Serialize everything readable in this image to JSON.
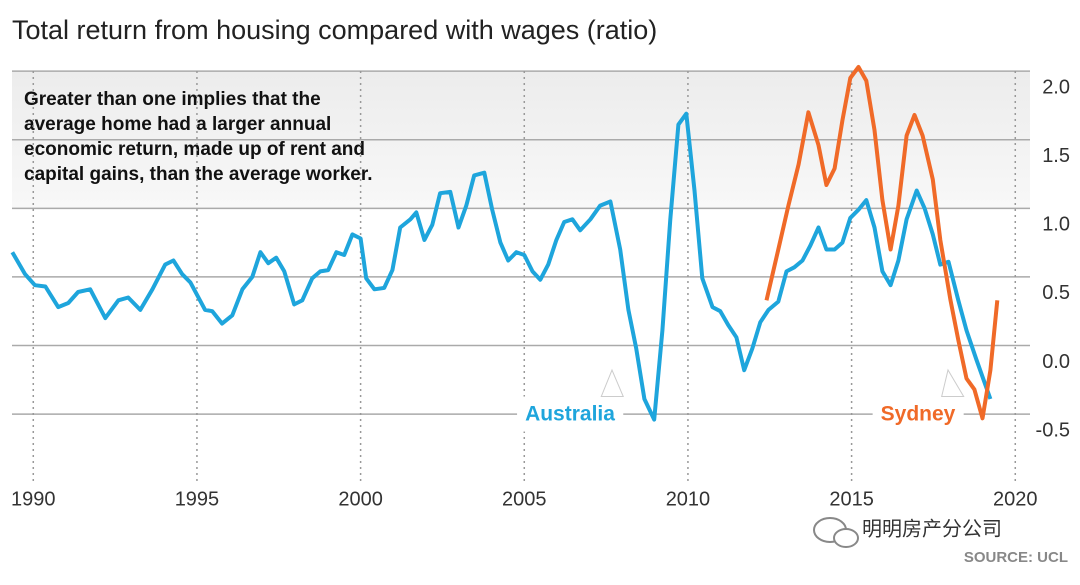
{
  "chart_data": {
    "type": "line",
    "title": "Total return from housing compared with wages (ratio)",
    "annotation": [
      "Greater than one implies that the",
      "average home had a larger annual",
      "economic return, made up of rent and",
      "capital gains, than the average worker."
    ],
    "source": "SOURCE: UCL",
    "watermark": "明明房产分公司",
    "xlim": [
      1989.35,
      2020.45
    ],
    "xticks": [
      1990,
      1995,
      2000,
      2005,
      2010,
      2015,
      2020
    ],
    "ylim": [
      -0.98,
      2.03
    ],
    "yticks": [
      {
        "value": 2,
        "label": "2.0"
      },
      1.5,
      {
        "value": 1,
        "label": "1.0"
      },
      0.5,
      {
        "value": 0,
        "label": "0.0"
      },
      -0.5
    ],
    "grid": true,
    "series": [
      {
        "name": "Australia",
        "color": "#1ea5dc",
        "x": [
          1989.36,
          1989.75,
          1990.05,
          1990.37,
          1990.76,
          1991.07,
          1991.37,
          1991.74,
          1992.2,
          1992.6,
          1992.9,
          1993.27,
          1993.64,
          1994.03,
          1994.28,
          1994.55,
          1994.8,
          1995.25,
          1995.47,
          1995.77,
          1996.08,
          1996.39,
          1996.69,
          1996.94,
          1997.18,
          1997.42,
          1997.67,
          1997.97,
          1998.22,
          1998.52,
          1998.77,
          1999.01,
          1999.26,
          1999.5,
          1999.75,
          2000.0,
          2000.17,
          2000.42,
          2000.72,
          2000.97,
          2001.21,
          2001.52,
          2001.7,
          2001.95,
          2002.19,
          2002.43,
          2002.74,
          2002.99,
          2003.23,
          2003.47,
          2003.78,
          2004.02,
          2004.27,
          2004.51,
          2004.76,
          2005.0,
          2005.25,
          2005.49,
          2005.73,
          2005.98,
          2006.22,
          2006.47,
          2006.71,
          2007.02,
          2007.32,
          2007.63,
          2007.93,
          2008.18,
          2008.42,
          2008.67,
          2008.97,
          2009.22,
          2009.46,
          2009.71,
          2009.95,
          2010.2,
          2010.44,
          2010.75,
          2010.99,
          2011.23,
          2011.48,
          2011.72,
          2011.97,
          2012.21,
          2012.46,
          2012.76,
          2013.01,
          2013.25,
          2013.5,
          2013.74,
          2013.99,
          2014.23,
          2014.48,
          2014.72,
          2014.96,
          2015.21,
          2015.45,
          2015.7,
          2015.94,
          2016.19,
          2016.43,
          2016.68,
          2016.99,
          2017.23,
          2017.48,
          2017.71,
          2017.96,
          2018.26,
          2018.51,
          2018.81,
          2019.24
        ],
        "values": [
          0.68,
          0.52,
          0.44,
          0.43,
          0.28,
          0.31,
          0.39,
          0.41,
          0.2,
          0.33,
          0.35,
          0.26,
          0.41,
          0.59,
          0.62,
          0.52,
          0.46,
          0.26,
          0.25,
          0.16,
          0.22,
          0.41,
          0.5,
          0.68,
          0.6,
          0.64,
          0.54,
          0.3,
          0.33,
          0.49,
          0.54,
          0.55,
          0.68,
          0.66,
          0.81,
          0.78,
          0.49,
          0.41,
          0.42,
          0.55,
          0.86,
          0.92,
          0.97,
          0.77,
          0.88,
          1.11,
          1.12,
          0.86,
          1.02,
          1.24,
          1.26,
          0.99,
          0.75,
          0.62,
          0.68,
          0.66,
          0.54,
          0.48,
          0.59,
          0.77,
          0.9,
          0.92,
          0.84,
          0.92,
          1.02,
          1.05,
          0.7,
          0.26,
          -0.02,
          -0.39,
          -0.54,
          0.11,
          0.92,
          1.61,
          1.69,
          1.13,
          0.49,
          0.28,
          0.25,
          0.15,
          0.06,
          -0.18,
          -0.02,
          0.17,
          0.26,
          0.32,
          0.54,
          0.57,
          0.62,
          0.73,
          0.86,
          0.7,
          0.7,
          0.75,
          0.93,
          0.99,
          1.06,
          0.86,
          0.54,
          0.44,
          0.62,
          0.92,
          1.13,
          1.0,
          0.81,
          0.59,
          0.61,
          0.33,
          0.11,
          -0.1,
          -0.39
        ]
      },
      {
        "name": "Sydney",
        "color": "#f06a28",
        "x": [
          2012.4,
          2012.76,
          2013.07,
          2013.38,
          2013.68,
          2013.99,
          2014.23,
          2014.48,
          2014.72,
          2014.96,
          2015.21,
          2015.45,
          2015.7,
          2015.94,
          2016.19,
          2016.43,
          2016.68,
          2016.92,
          2017.17,
          2017.48,
          2017.71,
          2018.02,
          2018.26,
          2018.51,
          2018.75,
          2019.0,
          2019.24,
          2019.45
        ],
        "values": [
          0.33,
          0.7,
          1.02,
          1.32,
          1.7,
          1.46,
          1.17,
          1.29,
          1.64,
          1.95,
          2.03,
          1.93,
          1.57,
          1.06,
          0.7,
          1.02,
          1.53,
          1.68,
          1.53,
          1.21,
          0.77,
          0.33,
          0.04,
          -0.24,
          -0.32,
          -0.53,
          -0.18,
          0.33
        ]
      }
    ]
  }
}
